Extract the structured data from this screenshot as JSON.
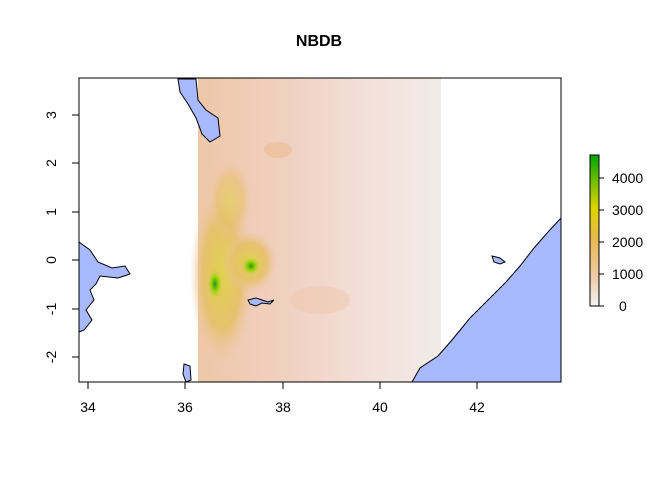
{
  "title": "NBDB",
  "map": {
    "x_range": [
      33.8,
      43.7
    ],
    "y_range": [
      -2.5,
      3.75
    ],
    "x_ticks": [
      34,
      36,
      38,
      40,
      42
    ],
    "y_ticks": [
      -2,
      -1,
      0,
      1,
      2,
      3
    ],
    "raster_extent": {
      "x": [
        36.3,
        41.25
      ],
      "y": [
        -2.5,
        3.75
      ]
    },
    "water_color": "#a9b9ff",
    "outline_color": "#000000"
  },
  "legend": {
    "ticks": [
      0,
      1000,
      2000,
      3000,
      4000
    ],
    "range": [
      0,
      4700
    ],
    "colors": {
      "low": "#f2f2f2",
      "mid_low": "#f0c9a8",
      "mid": "#e6b84a",
      "mid_high": "#d4e000",
      "high": "#00a600"
    }
  }
}
